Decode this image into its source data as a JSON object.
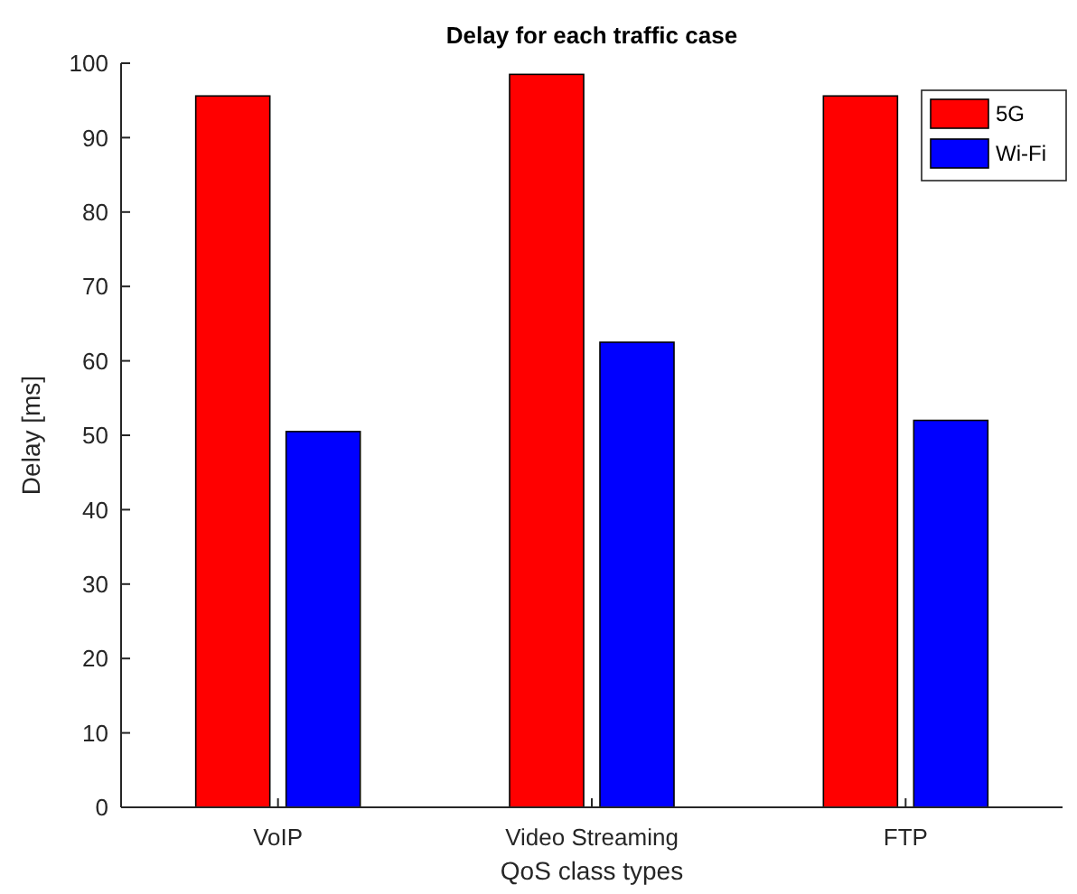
{
  "chart_data": {
    "type": "bar",
    "title": "Delay for each traffic case",
    "xlabel": "QoS class types",
    "ylabel": "Delay [ms]",
    "categories": [
      "VoIP",
      "Video Streaming",
      "FTP"
    ],
    "series": [
      {
        "name": "5G",
        "color": "#ff0000",
        "values": [
          95.6,
          98.5,
          95.6
        ]
      },
      {
        "name": "Wi-Fi",
        "color": "#0000ff",
        "values": [
          50.5,
          62.5,
          52
        ]
      }
    ],
    "ylim": [
      0,
      100
    ],
    "yticks": [
      0,
      10,
      20,
      30,
      40,
      50,
      60,
      70,
      80,
      90,
      100
    ],
    "grid": false,
    "legend": "top right"
  }
}
